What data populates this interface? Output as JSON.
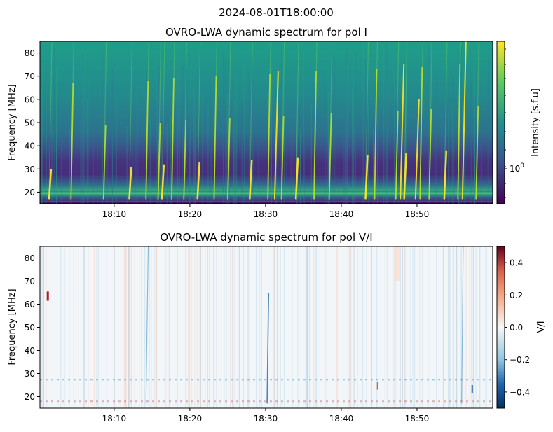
{
  "figure": {
    "suptitle": "2024-08-01T18:00:00"
  },
  "chart_data": [
    {
      "type": "heatmap",
      "title": "OVRO-LWA dynamic spectrum for pol I",
      "ylabel": "Frequency [MHz]",
      "xlabel": "",
      "x_ticks": [
        "18:10",
        "18:20",
        "18:30",
        "18:40",
        "18:50"
      ],
      "x_tick_minutes": [
        10,
        20,
        30,
        40,
        50
      ],
      "x_range_minutes": [
        0.2,
        60
      ],
      "y_ticks": [
        20,
        30,
        40,
        50,
        60,
        70,
        80
      ],
      "ylim": [
        15,
        85
      ],
      "colorbar": {
        "label": "Intensity [s.f.u]",
        "tick_label": "10",
        "tick_exponent": "0",
        "scale": "log",
        "colormap": "viridis"
      },
      "colors": [
        "#440154",
        "#3b528b",
        "#21918c",
        "#5ec962",
        "#fde725"
      ],
      "notable_bursts_minutes": [
        1.4,
        4.3,
        8.6,
        12.0,
        14.2,
        15.8,
        16.3,
        17.6,
        19.2,
        21.0,
        23.2,
        25.0,
        27.9,
        30.3,
        32.1,
        34.0,
        36.4,
        38.4,
        43.2,
        44.4,
        47.2,
        48.3,
        50.4,
        51.6,
        53.6,
        55.4,
        57.8
      ]
    },
    {
      "type": "heatmap",
      "title": "OVRO-LWA dynamic spectrum for pol V/I",
      "ylabel": "Frequency [MHz]",
      "xlabel": "",
      "x_ticks": [
        "18:10",
        "18:20",
        "18:30",
        "18:40",
        "18:50"
      ],
      "x_tick_minutes": [
        10,
        20,
        30,
        40,
        50
      ],
      "x_range_minutes": [
        0.2,
        60
      ],
      "y_ticks": [
        20,
        30,
        40,
        50,
        60,
        70,
        80
      ],
      "ylim": [
        15,
        85
      ],
      "colorbar": {
        "label": "V/I",
        "ticks": [
          "0.4",
          "0.2",
          "0.0",
          "−0.2",
          "−0.4"
        ],
        "tick_values": [
          0.4,
          0.2,
          0.0,
          -0.2,
          -0.4
        ],
        "range": [
          -0.5,
          0.5
        ],
        "colormap": "RdBu_r"
      },
      "colors": [
        "#053061",
        "#2166ac",
        "#f7f7f7",
        "#d6604d",
        "#67001f"
      ]
    }
  ]
}
